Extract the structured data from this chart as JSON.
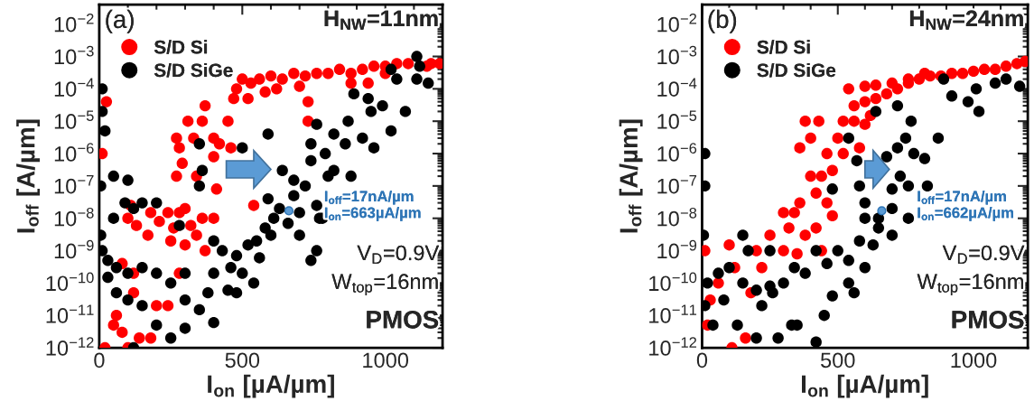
{
  "chart_data": [
    {
      "type": "scatter",
      "xlabel": "I$_{on}$ [µA/µm]",
      "ylabel": "I$_{off}$ [A/µm]",
      "log": "y",
      "xlim": [
        0,
        1200
      ],
      "xticks": [
        0,
        500,
        1000
      ],
      "ylim": [
        1e-12,
        0.04
      ],
      "yticks": [
        {
          "value": 1e-12,
          "label": "10$^{−12}$"
        },
        {
          "value": 1e-11,
          "label": "10$^{−11}$"
        },
        {
          "value": 1e-10,
          "label": "10$^{−10}$"
        },
        {
          "value": 1e-09,
          "label": "10$^{−9}$"
        },
        {
          "value": 1e-08,
          "label": "10$^{−8}$"
        },
        {
          "value": 1e-07,
          "label": "10$^{−7}$"
        },
        {
          "value": 1e-06,
          "label": "10$^{−6}$"
        },
        {
          "value": 1e-05,
          "label": "10$^{−5}$"
        },
        {
          "value": 0.0001,
          "label": "10$^{−4}$"
        },
        {
          "value": 0.001,
          "label": "10$^{−3}$"
        },
        {
          "value": 0.01,
          "label": "10$^{−2}$"
        }
      ],
      "legend": "top left",
      "marker": "circle",
      "grid": false,
      "annotations": [
        "(a)",
        "H$_{NW}$=11nm",
        "V$_{D}$=0.9V",
        "W$_{top}$=16nm",
        "PMOS",
        {
          "text": "I$_{off}$=17nA/µm\nI$_{on}$=663µA/µm",
          "x": 663,
          "y": 1.7e-08
        }
      ],
      "series": [
        {
          "name": "S/D Si",
          "color": "#ff0000",
          "x": [
            470,
            480,
            500,
            530,
            560,
            600,
            640,
            680,
            720,
            760,
            800,
            840,
            880,
            920,
            960,
            1000,
            1040,
            1080,
            1145,
            1160,
            1190,
            520,
            620,
            700,
            730,
            730,
            940,
            1000,
            880,
            580,
            270,
            280,
            310,
            290,
            330,
            360,
            370,
            400,
            420,
            460,
            450,
            400,
            410,
            340,
            270,
            300,
            110,
            180,
            210,
            240,
            260,
            280,
            320,
            340,
            360,
            400,
            100,
            130,
            170,
            250,
            300,
            370,
            540,
            10,
            25,
            80,
            120,
            280,
            60,
            80,
            100,
            140,
            180,
            50,
            120,
            200,
            240,
            20
          ],
          "values": [
            5e-05,
            0.0001,
            0.0002,
            0.00015,
            0.0002,
            0.00025,
            0.0002,
            0.0003,
            0.00025,
            0.0003,
            0.0003,
            0.0004,
            0.0003,
            0.0004,
            0.0005,
            0.0005,
            0.0006,
            0.0006,
            0.0005,
            0.0006,
            0.0006,
            5e-05,
            0.0001,
            0.00012,
            4e-05,
            1e-05,
            0.00015,
            0.0003,
            0.00015,
            8e-05,
            3e-06,
            1.5e-06,
            1e-05,
            5e-07,
            3e-06,
            1e-05,
            3e-05,
            3e-06,
            2e-06,
            1.5e-06,
            1e-05,
            8e-07,
            8e-08,
            2e-07,
            2e-07,
            2e-08,
            2.5e-08,
            1.5e-08,
            8e-09,
            1.5e-08,
            5e-09,
            1.5e-08,
            6e-09,
            3e-09,
            1e-08,
            1e-08,
            1e-08,
            6e-09,
            3e-09,
            2e-09,
            1.5e-09,
            1e-09,
            2.5e-08,
            1e-06,
            4e-05,
            4e-10,
            2e-10,
            2e-10,
            1e-11,
            3e-12,
            1e-12,
            2e-12,
            2e-12,
            5e-12,
            5e-11,
            2e-11,
            2e-11,
            1e-12
          ]
        },
        {
          "name": "S/D SiGe",
          "color": "#000000",
          "x": [
            1110,
            1120,
            1020,
            1110,
            1150,
            1040,
            890,
            940,
            990,
            1070,
            950,
            870,
            760,
            1020,
            920,
            960,
            590,
            500,
            740,
            820,
            860,
            790,
            740,
            820,
            880,
            640,
            680,
            720,
            800,
            680,
            590,
            630,
            760,
            780,
            700,
            610,
            580,
            550,
            660,
            700,
            760,
            520,
            480,
            430,
            400,
            560,
            600,
            460,
            400,
            500,
            540,
            450,
            380,
            350,
            300,
            250,
            300,
            200,
            150,
            100,
            60,
            30,
            10,
            5,
            5,
            20,
            10,
            10,
            50,
            100,
            90,
            120,
            150,
            200,
            50,
            30,
            60,
            100,
            150,
            200,
            250,
            120,
            300,
            400,
            480,
            350,
            350,
            360,
            770,
            280,
            740
          ],
          "values": [
            0.001,
            0.0005,
            0.0004,
            0.0002,
            0.00015,
            0.0002,
            7e-05,
            5e-05,
            3e-05,
            2e-05,
            2e-05,
            1e-05,
            8e-06,
            5e-06,
            3e-06,
            1.5e-06,
            4e-06,
            1.5e-06,
            2e-06,
            4e-06,
            2e-06,
            1e-06,
            6e-07,
            3e-07,
            2e-07,
            3e-07,
            1.5e-07,
            1e-07,
            2e-07,
            5e-08,
            4e-08,
            2e-08,
            2.5e-08,
            1e-08,
            1.5e-08,
            1e-08,
            5e-09,
            2e-09,
            7e-09,
            3e-09,
            1e-09,
            1.5e-09,
            7e-10,
            1e-09,
            2e-09,
            6e-10,
            3e-09,
            3e-10,
            2e-10,
            2e-10,
            1e-10,
            6e-11,
            5e-11,
            1.5e-11,
            3e-11,
            1e-10,
            2e-10,
            2e-10,
            3e-10,
            2e-10,
            3e-10,
            5e-10,
            1e-09,
            3e-09,
            1e-07,
            5e-06,
            2e-05,
            0.0001,
            2e-07,
            1.5e-07,
            3e-08,
            2e-08,
            3e-08,
            3e-08,
            1e-08,
            1.5e-10,
            5e-11,
            3e-11,
            2e-11,
            5e-12,
            2e-12,
            1e-12,
            4e-12,
            6e-12,
            5e-11,
            1e-07,
            2e-06,
            3e-07,
            1e-08,
            6e-09,
            5e-10
          ]
        },
        {
          "color": "#5b9bd5",
          "x": [
            663
          ],
          "values": [
            1.7e-08
          ]
        }
      ]
    },
    {
      "type": "scatter",
      "xlabel": "I$_{on}$ [µA/µm]",
      "ylabel": "I$_{off}$ [A/µm]",
      "log": "y",
      "xlim": [
        0,
        1200
      ],
      "xticks": [
        0,
        500,
        1000
      ],
      "ylim": [
        1e-12,
        0.04
      ],
      "yticks": [
        {
          "value": 1e-12,
          "label": "10$^{−12}$"
        },
        {
          "value": 1e-11,
          "label": "10$^{−11}$"
        },
        {
          "value": 1e-10,
          "label": "10$^{−10}$"
        },
        {
          "value": 1e-09,
          "label": "10$^{−9}$"
        },
        {
          "value": 1e-08,
          "label": "10$^{−8}$"
        },
        {
          "value": 1e-07,
          "label": "10$^{−7}$"
        },
        {
          "value": 1e-06,
          "label": "10$^{−6}$"
        },
        {
          "value": 1e-05,
          "label": "10$^{−5}$"
        },
        {
          "value": 0.0001,
          "label": "10$^{−4}$"
        },
        {
          "value": 0.001,
          "label": "10$^{−3}$"
        },
        {
          "value": 0.01,
          "label": "10$^{−2}$"
        }
      ],
      "legend": "top left",
      "marker": "circle",
      "grid": false,
      "annotations": [
        "(b)",
        "H$_{NW}$=24nm",
        "V$_{D}$=0.9V",
        "W$_{top}$=16nm",
        "PMOS",
        {
          "text": "I$_{off}$=17nA/µm\nI$_{on}$=662µA/µm",
          "x": 662,
          "y": 1.7e-08
        }
      ],
      "series": [
        {
          "name": "S/D Si",
          "color": "#ff0000",
          "x": [
            540,
            560,
            600,
            640,
            680,
            720,
            760,
            600,
            640,
            700,
            800,
            840,
            880,
            920,
            960,
            1000,
            1040,
            1080,
            1120,
            1160,
            1190,
            760,
            820,
            520,
            560,
            600,
            620,
            520,
            500,
            580,
            380,
            430,
            400,
            360,
            460,
            480,
            400,
            440,
            420,
            460,
            480,
            360,
            340,
            300,
            320,
            380,
            420,
            440,
            250,
            200,
            300,
            350,
            10,
            100,
            120,
            60,
            30,
            20,
            110,
            160,
            180,
            220
          ],
          "values": [
            0.0001,
            3e-05,
            4e-05,
            5e-05,
            7e-05,
            0.0001,
            0.00015,
            0.00012,
            0.00013,
            0.00015,
            0.0002,
            0.00025,
            0.00025,
            0.0003,
            0.0003,
            0.00035,
            0.0004,
            0.0004,
            0.0005,
            0.0006,
            0.0007,
            0.0002,
            0.0003,
            1e-05,
            1e-05,
            8e-06,
            1.5e-05,
            1e-06,
            3e-06,
            1.5e-06,
            1e-05,
            1e-05,
            3e-06,
            1.5e-06,
            1e-06,
            3e-07,
            2e-07,
            2e-07,
            6e-08,
            3e-08,
            1.2e-08,
            3e-08,
            1.5e-08,
            1.5e-08,
            5e-09,
            3e-09,
            5e-09,
            1e-09,
            3e-09,
            1e-09,
            1e-09,
            8e-10,
            1e-09,
            1.5e-09,
            3e-10,
            1e-10,
            3e-11,
            5e-12,
            1e-12,
            2e-12,
            5e-11,
            3e-10
          ]
        },
        {
          "name": "S/D SiGe",
          "color": "#000000",
          "x": [
            890,
            1010,
            1080,
            1120,
            1170,
            920,
            980,
            1020,
            720,
            640,
            770,
            870,
            750,
            720,
            820,
            680,
            780,
            730,
            830,
            760,
            700,
            570,
            480,
            540,
            580,
            600,
            600,
            700,
            760,
            650,
            700,
            650,
            630,
            580,
            540,
            500,
            460,
            420,
            380,
            340,
            300,
            260,
            220,
            200,
            150,
            100,
            60,
            20,
            10,
            40,
            80,
            130,
            200,
            280,
            330,
            420,
            480,
            560,
            600,
            540,
            250,
            170,
            150,
            10,
            10,
            5,
            250,
            350,
            450
          ],
          "values": [
            0.0002,
            0.0001,
            0.00015,
            0.0002,
            0.00012,
            6e-05,
            4e-05,
            2e-05,
            3e-05,
            2e-05,
            1e-05,
            3e-06,
            3e-06,
            1.5e-06,
            7e-07,
            8e-07,
            1e-06,
            2e-07,
            1e-07,
            1e-07,
            8e-08,
            6e-07,
            8e-08,
            3e-06,
            1e-07,
            3e-08,
            1e-08,
            2e-08,
            1e-08,
            1e-08,
            3e-09,
            5e-09,
            1.5e-09,
            2e-09,
            5e-10,
            1e-09,
            4e-10,
            1e-09,
            2e-10,
            3e-10,
            1e-10,
            5e-11,
            2e-11,
            6e-11,
            1e-10,
            3e-10,
            2e-10,
            1e-10,
            2e-11,
            5e-12,
            3e-11,
            5e-12,
            2e-12,
            2e-12,
            5e-12,
            1.5e-12,
            4e-11,
            5e-11,
            3e-10,
            1e-10,
            8e-11,
            1e-09,
            3e-09,
            1e-06,
            1e-07,
            3e-09,
            1e-09,
            5e-12,
            1e-11
          ]
        },
        {
          "color": "#5b9bd5",
          "x": [
            662
          ],
          "values": [
            1.7e-08
          ]
        }
      ]
    }
  ]
}
